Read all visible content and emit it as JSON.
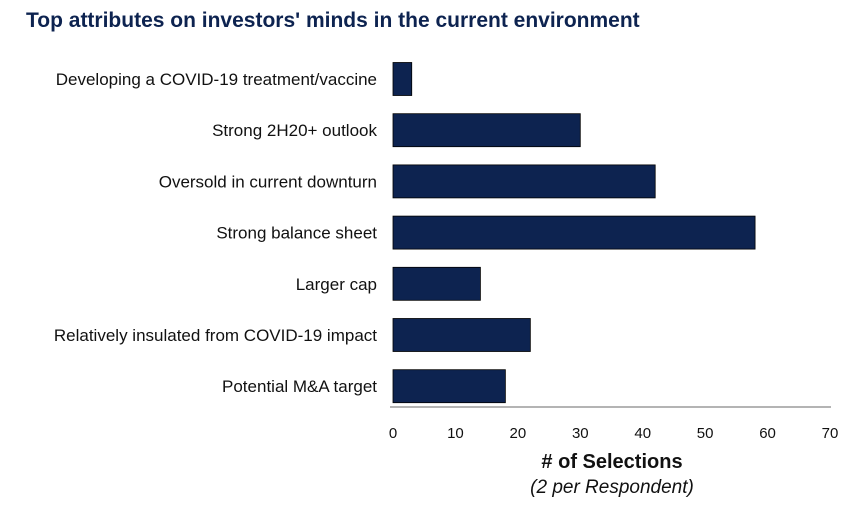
{
  "chart_data": {
    "type": "bar",
    "orientation": "horizontal",
    "title": "Top attributes on investors' minds in the current environment",
    "categories": [
      "Developing a COVID-19 treatment/vaccine",
      "Strong 2H20+ outlook",
      "Oversold in current downturn",
      "Strong balance sheet",
      "Larger cap",
      "Relatively insulated from COVID-19 impact",
      "Potential M&A target"
    ],
    "values": [
      3,
      30,
      42,
      58,
      14,
      22,
      18
    ],
    "xlabel": "# of Selections",
    "xlabel_sub": "(2 per Respondent)",
    "xlim": [
      0,
      70
    ],
    "xticks": [
      "0",
      "10",
      "20",
      "30",
      "40",
      "50",
      "60",
      "70"
    ],
    "grid": false,
    "bar_color": "#0d2350",
    "title_color": "#0d2350"
  }
}
